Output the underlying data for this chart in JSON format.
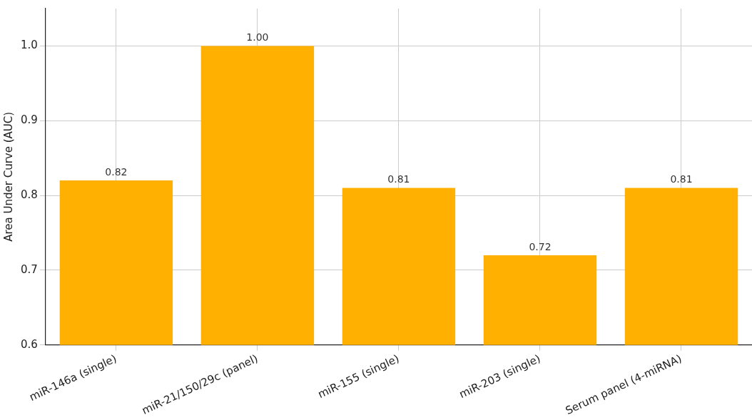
{
  "chart_data": {
    "type": "bar",
    "ylabel": "Area Under Curve (AUC)",
    "categories": [
      "miR-146a (single)",
      "miR-21/150/29c (panel)",
      "miR-155 (single)",
      "miR-203 (single)",
      "Serum panel (4-miRNA)"
    ],
    "values": [
      0.82,
      1.0,
      0.81,
      0.72,
      0.81
    ],
    "color": "#ffb000",
    "value_labels": [
      "0.82",
      "1.00",
      "0.81",
      "0.72",
      "0.81"
    ],
    "ylim": [
      0.6,
      1.05
    ],
    "yticks": [
      0.6,
      0.7,
      0.8,
      0.9,
      {
        "value": 1.0,
        "label": "1.0"
      }
    ],
    "grid": true
  }
}
